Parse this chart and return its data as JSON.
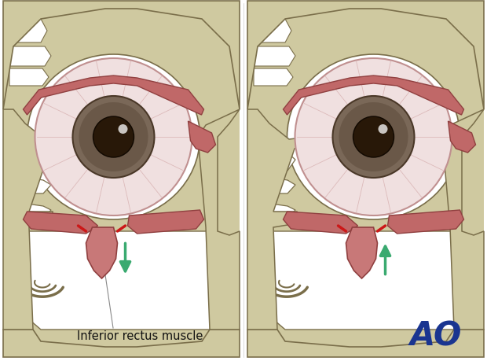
{
  "background_color": "#ffffff",
  "bone_fill": "#cfc9a0",
  "bone_edge": "#7a6e4a",
  "bone_texture": "#b8b090",
  "sinus_fill": "#ffffff",
  "sclera_fill": "#f0e0e0",
  "sclera_edge": "#c09090",
  "iris_outer": "#7a6858",
  "iris_inner": "#6a5848",
  "pupil_fill": "#281808",
  "muscle_fill": "#c06868",
  "muscle_edge": "#904040",
  "eyelid_fill": "#b85858",
  "arrow_color": "#3aaa70",
  "red_color": "#cc1818",
  "label_text": "Inferior rectus muscle",
  "ao_text": "AO",
  "ao_color": "#1a3590",
  "label_fs": 10.5,
  "ao_fs": 30
}
